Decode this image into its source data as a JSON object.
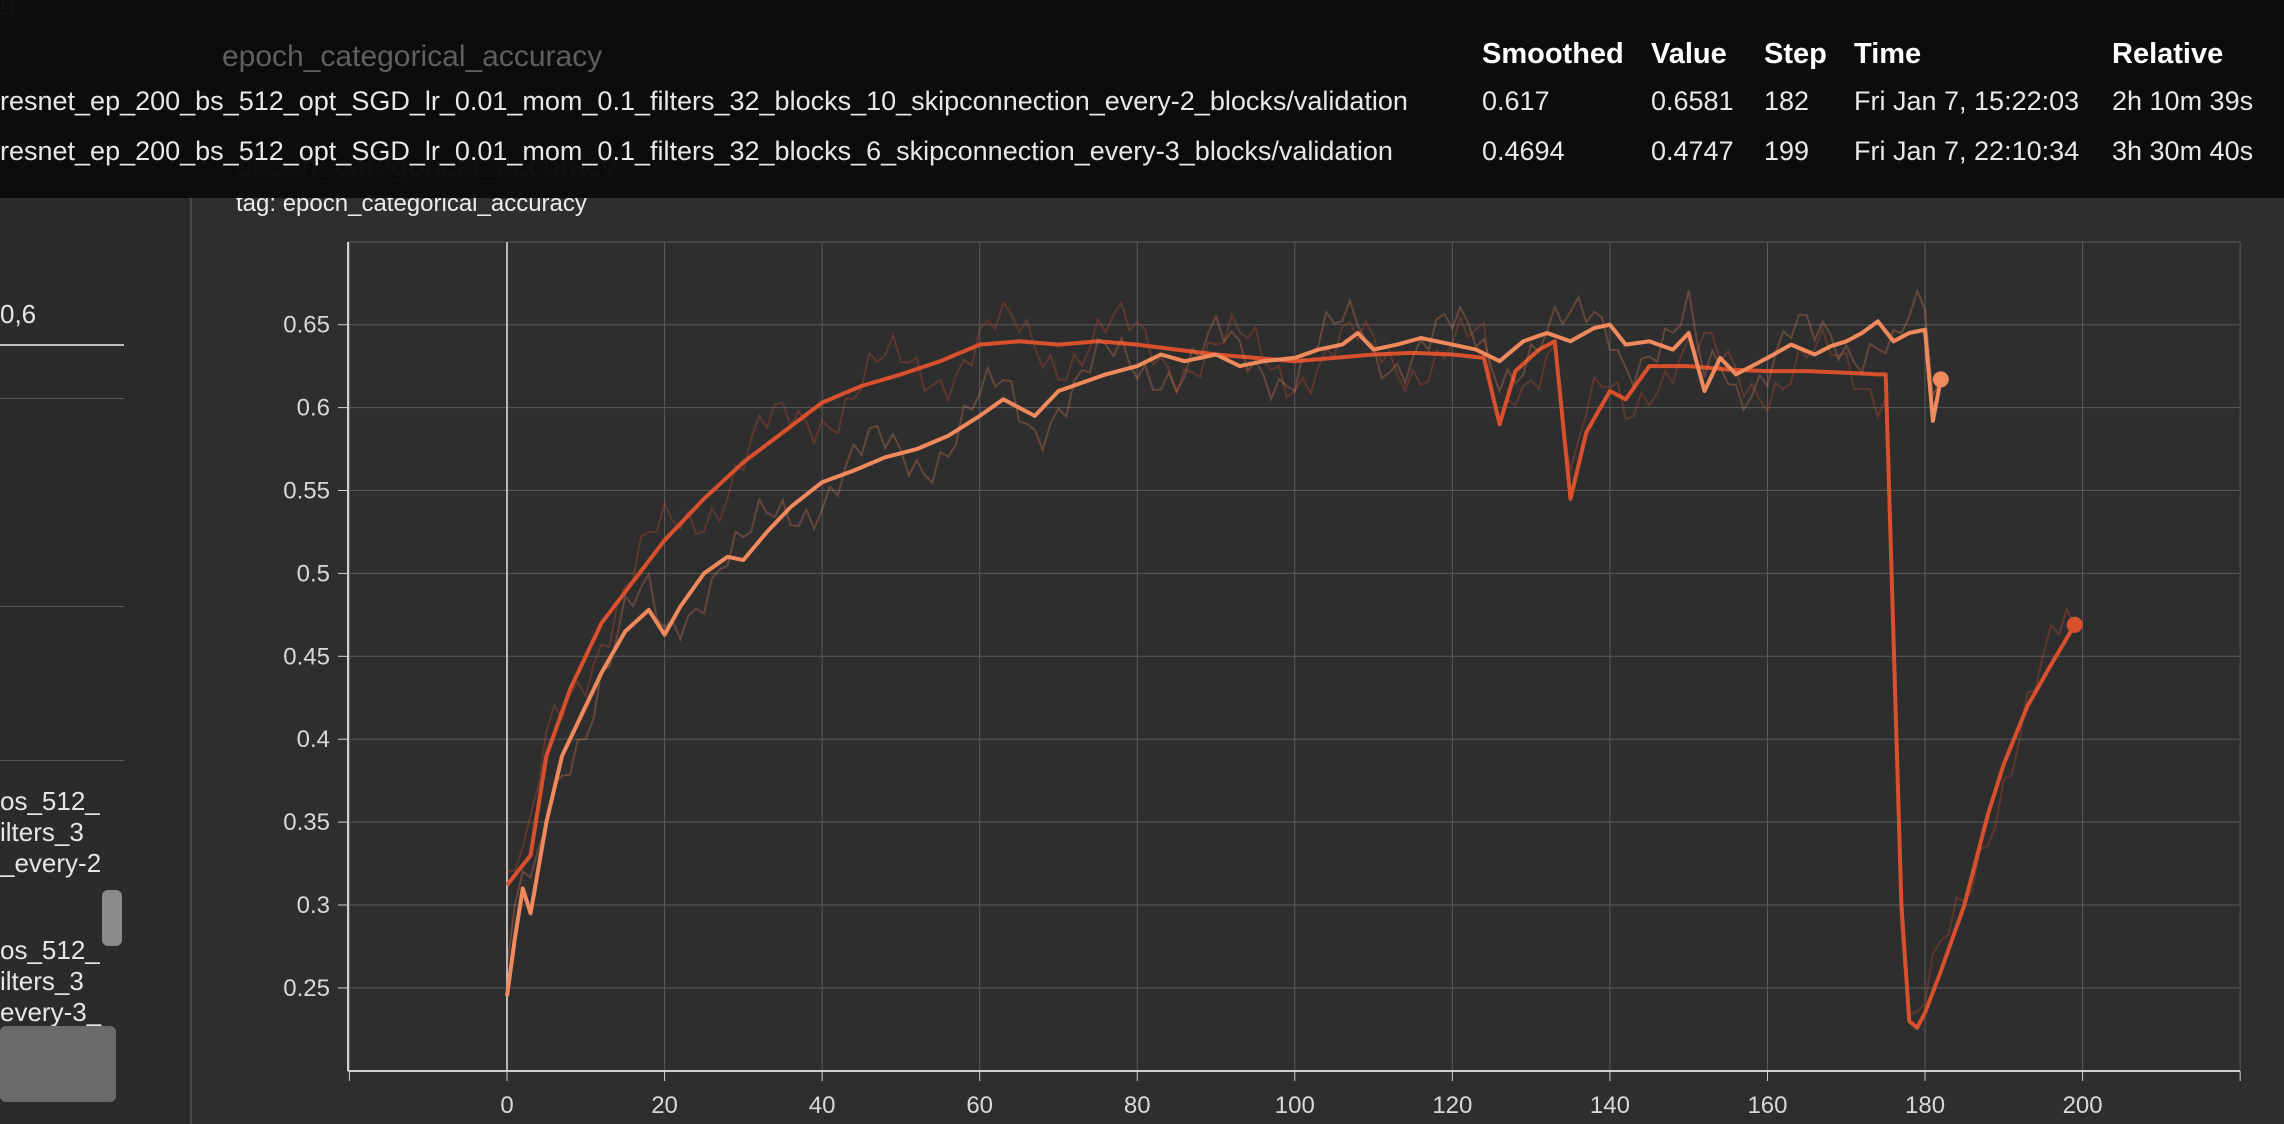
{
  "sidebar": {
    "fragments": [
      "g",
      "0,6",
      "os_512_",
      "ilters_3",
      "_every-2",
      "os_512_",
      "ilters_3",
      "every-3_"
    ]
  },
  "card": {
    "title": "epoch_categorical_accuracy",
    "tag": "tag: epoch_categorical_accuracy"
  },
  "tooltip": {
    "title": "epoch_categorical_accuracy",
    "headers": {
      "smoothed": "Smoothed",
      "value": "Value",
      "step": "Step",
      "time": "Time",
      "relative": "Relative"
    },
    "rows": [
      {
        "name": "resnet_ep_200_bs_512_opt_SGD_lr_0.01_mom_0.1_filters_32_blocks_10_skipconnection_every-2_blocks/validation",
        "smoothed": "0.617",
        "value": "0.6581",
        "step": "182",
        "time": "Fri Jan 7, 15:22:03",
        "relative": "2h 10m 39s",
        "color": "#f08a5d"
      },
      {
        "name": "resnet_ep_200_bs_512_opt_SGD_lr_0.01_mom_0.1_filters_32_blocks_6_skipconnection_every-3_blocks/validation",
        "smoothed": "0.4694",
        "value": "0.4747",
        "step": "199",
        "time": "Fri Jan 7, 22:10:34",
        "relative": "3h 30m 40s",
        "color": "#d9502d"
      }
    ]
  },
  "chart_data": {
    "type": "line",
    "title": "epoch_categorical_accuracy",
    "xlabel": "",
    "ylabel": "",
    "xlim": [
      -20,
      220
    ],
    "ylim": [
      0.2,
      0.65
    ],
    "x_ticks": [
      0,
      20,
      40,
      60,
      80,
      100,
      120,
      140,
      160,
      180,
      200
    ],
    "y_ticks": [
      0.25,
      0.3,
      0.35,
      0.4,
      0.45,
      0.5,
      0.55,
      0.6,
      0.65
    ],
    "y_tick_labels": [
      "0.25",
      "0.3",
      "0.35",
      "0.4",
      "0.45",
      "0.5",
      "0.55",
      "0.6",
      "0.65"
    ],
    "grid": true,
    "series": [
      {
        "color": "#d9502d",
        "points": [
          [
            0,
            0.312
          ],
          [
            3,
            0.33
          ],
          [
            5,
            0.39
          ],
          [
            8,
            0.43
          ],
          [
            12,
            0.47
          ],
          [
            16,
            0.495
          ],
          [
            20,
            0.52
          ],
          [
            25,
            0.545
          ],
          [
            30,
            0.567
          ],
          [
            35,
            0.585
          ],
          [
            40,
            0.603
          ],
          [
            45,
            0.613
          ],
          [
            50,
            0.62
          ],
          [
            55,
            0.628
          ],
          [
            60,
            0.638
          ],
          [
            65,
            0.64
          ],
          [
            70,
            0.638
          ],
          [
            75,
            0.64
          ],
          [
            80,
            0.638
          ],
          [
            85,
            0.635
          ],
          [
            90,
            0.632
          ],
          [
            95,
            0.63
          ],
          [
            100,
            0.628
          ],
          [
            105,
            0.63
          ],
          [
            110,
            0.632
          ],
          [
            115,
            0.633
          ],
          [
            120,
            0.632
          ],
          [
            124,
            0.63
          ],
          [
            126,
            0.59
          ],
          [
            128,
            0.622
          ],
          [
            131,
            0.635
          ],
          [
            133,
            0.64
          ],
          [
            135,
            0.545
          ],
          [
            137,
            0.585
          ],
          [
            140,
            0.61
          ],
          [
            142,
            0.605
          ],
          [
            145,
            0.625
          ],
          [
            150,
            0.625
          ],
          [
            155,
            0.623
          ],
          [
            160,
            0.622
          ],
          [
            165,
            0.622
          ],
          [
            170,
            0.621
          ],
          [
            174,
            0.62
          ],
          [
            175,
            0.62
          ],
          [
            177,
            0.3
          ],
          [
            178,
            0.23
          ],
          [
            179,
            0.226
          ],
          [
            180,
            0.235
          ],
          [
            182,
            0.26
          ],
          [
            185,
            0.3
          ],
          [
            188,
            0.355
          ],
          [
            190,
            0.385
          ],
          [
            193,
            0.42
          ],
          [
            196,
            0.445
          ],
          [
            199,
            0.469
          ]
        ],
        "end_marker": [
          199,
          0.469
        ]
      },
      {
        "color": "#f08a5d",
        "points": [
          [
            0,
            0.245
          ],
          [
            1,
            0.28
          ],
          [
            2,
            0.31
          ],
          [
            3,
            0.295
          ],
          [
            5,
            0.35
          ],
          [
            7,
            0.39
          ],
          [
            9,
            0.41
          ],
          [
            12,
            0.44
          ],
          [
            15,
            0.465
          ],
          [
            18,
            0.478
          ],
          [
            20,
            0.463
          ],
          [
            22,
            0.48
          ],
          [
            25,
            0.5
          ],
          [
            28,
            0.51
          ],
          [
            30,
            0.508
          ],
          [
            33,
            0.525
          ],
          [
            36,
            0.54
          ],
          [
            40,
            0.555
          ],
          [
            44,
            0.562
          ],
          [
            48,
            0.57
          ],
          [
            52,
            0.575
          ],
          [
            56,
            0.583
          ],
          [
            60,
            0.595
          ],
          [
            63,
            0.605
          ],
          [
            65,
            0.6
          ],
          [
            67,
            0.595
          ],
          [
            70,
            0.61
          ],
          [
            73,
            0.615
          ],
          [
            76,
            0.62
          ],
          [
            80,
            0.625
          ],
          [
            83,
            0.632
          ],
          [
            86,
            0.628
          ],
          [
            90,
            0.632
          ],
          [
            93,
            0.625
          ],
          [
            96,
            0.628
          ],
          [
            100,
            0.63
          ],
          [
            103,
            0.635
          ],
          [
            106,
            0.638
          ],
          [
            108,
            0.645
          ],
          [
            110,
            0.635
          ],
          [
            113,
            0.638
          ],
          [
            116,
            0.642
          ],
          [
            120,
            0.638
          ],
          [
            123,
            0.635
          ],
          [
            126,
            0.628
          ],
          [
            129,
            0.64
          ],
          [
            132,
            0.645
          ],
          [
            135,
            0.64
          ],
          [
            138,
            0.648
          ],
          [
            140,
            0.65
          ],
          [
            142,
            0.638
          ],
          [
            145,
            0.64
          ],
          [
            148,
            0.635
          ],
          [
            150,
            0.645
          ],
          [
            152,
            0.61
          ],
          [
            154,
            0.63
          ],
          [
            156,
            0.62
          ],
          [
            160,
            0.63
          ],
          [
            163,
            0.638
          ],
          [
            166,
            0.632
          ],
          [
            168,
            0.637
          ],
          [
            170,
            0.64
          ],
          [
            172,
            0.645
          ],
          [
            174,
            0.652
          ],
          [
            176,
            0.64
          ],
          [
            178,
            0.645
          ],
          [
            180,
            0.647
          ],
          [
            181,
            0.592
          ],
          [
            182,
            0.617
          ]
        ],
        "end_marker": [
          182,
          0.617
        ]
      }
    ]
  }
}
